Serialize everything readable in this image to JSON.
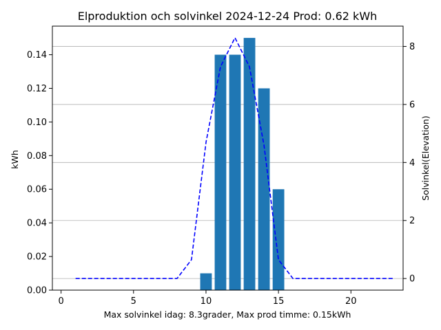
{
  "chart_data": {
    "type": "bar",
    "title": "Elproduktion och solvinkel 2024-12-24 Prod: 0.62 kWh",
    "xlabel": "Max solvinkel idag: 8.3grader, Max prod timme: 0.15kWh",
    "ylabel": "kWh",
    "y2label": "Solvinkel(Elevation)",
    "xlim": [
      -0.6,
      23.6
    ],
    "ylim": [
      0,
      0.157
    ],
    "y2lim": [
      -0.4,
      8.7
    ],
    "xticks": [
      0,
      5,
      10,
      15,
      20
    ],
    "yticks": [
      0.0,
      0.02,
      0.04,
      0.06,
      0.08,
      0.1,
      0.12,
      0.14
    ],
    "y2ticks": [
      0,
      2,
      4,
      6,
      8
    ],
    "grid": "right-axis horizontal",
    "bar_color": "#1f77b4",
    "line_color": "#0000ff",
    "series": [
      {
        "type": "bar",
        "axis": "left",
        "x": [
          10,
          11,
          12,
          13,
          14,
          15
        ],
        "values": [
          0.01,
          0.14,
          0.14,
          0.15,
          0.12,
          0.06
        ]
      },
      {
        "type": "line",
        "style": "dashed",
        "axis": "right",
        "x": [
          1,
          2,
          3,
          4,
          5,
          6,
          7,
          8,
          9,
          10,
          11,
          12,
          13,
          14,
          15,
          16,
          17,
          18,
          19,
          20,
          21,
          22,
          23
        ],
        "values": [
          0,
          0,
          0,
          0,
          0,
          0,
          0,
          0,
          0.65,
          4.7,
          7.3,
          8.3,
          7.3,
          4.6,
          0.65,
          0,
          0,
          0,
          0,
          0,
          0,
          0,
          0
        ]
      }
    ]
  }
}
